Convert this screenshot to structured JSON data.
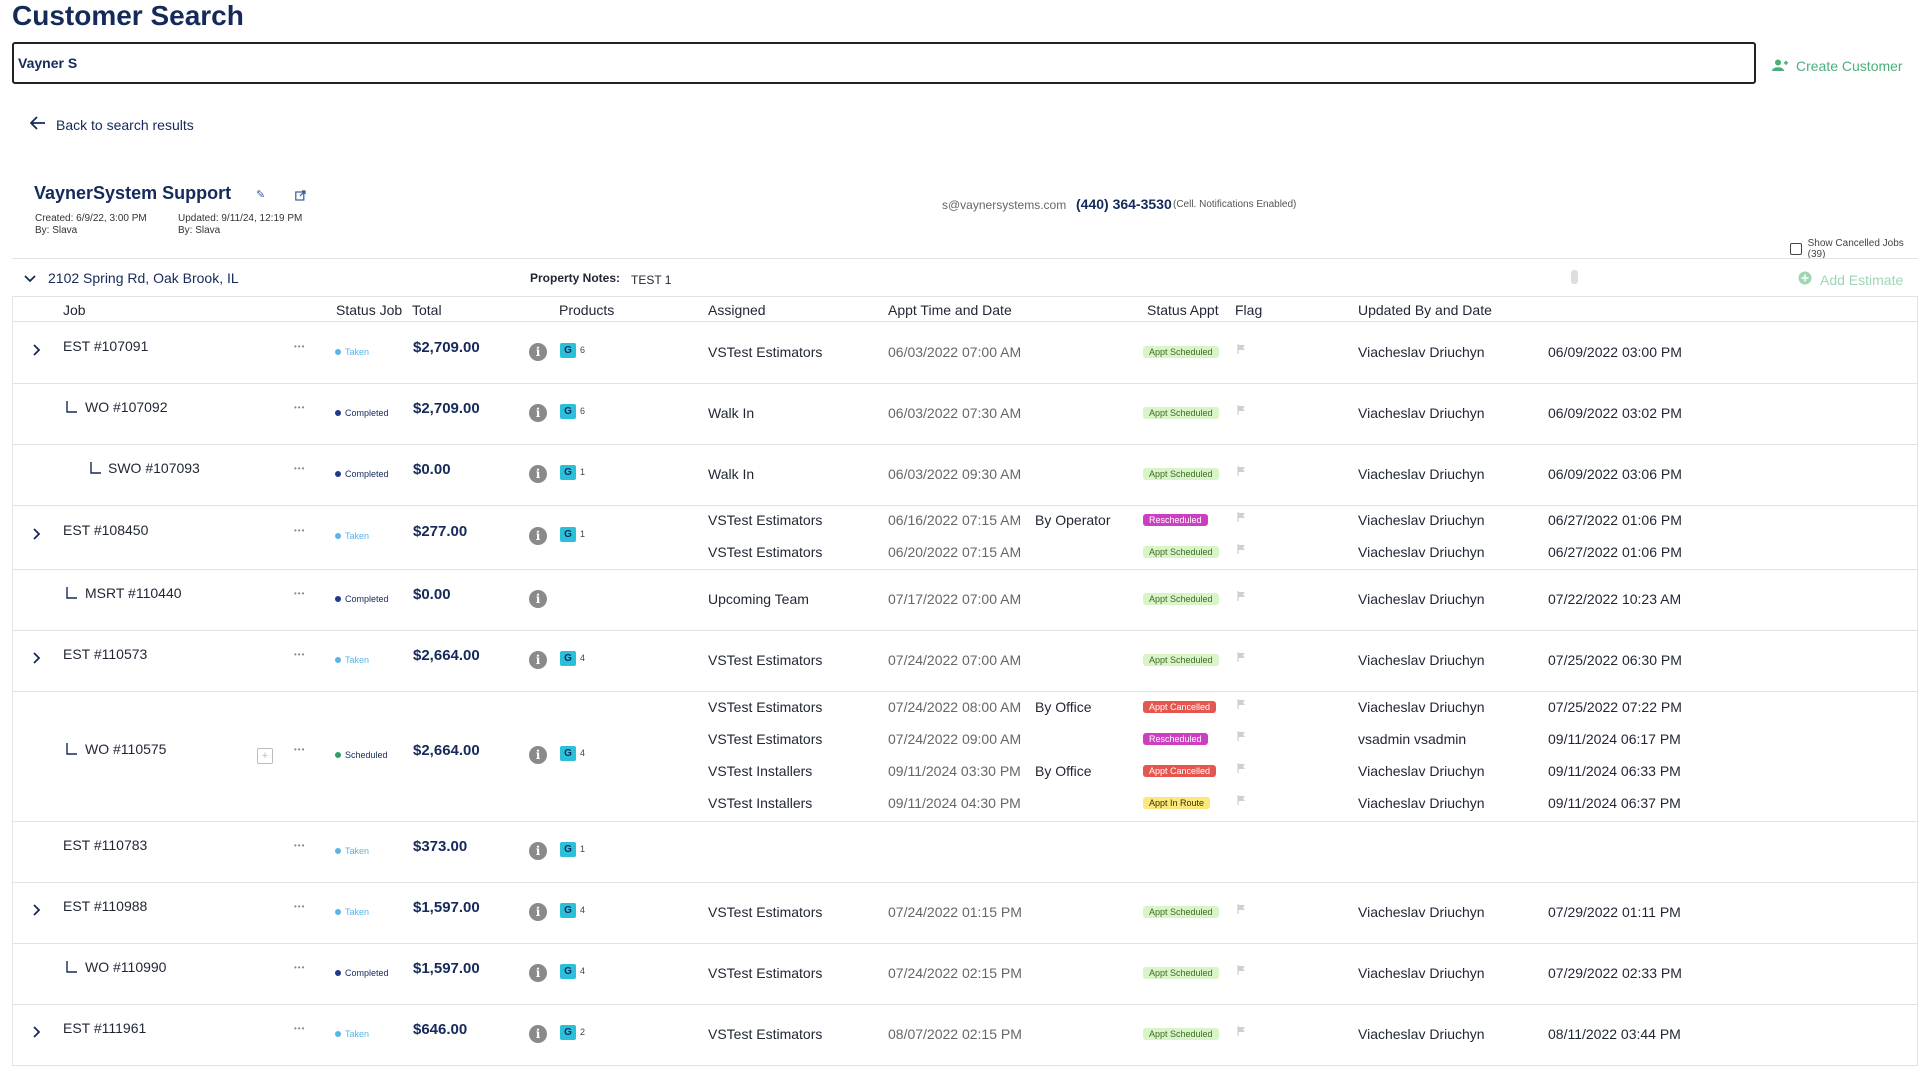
{
  "page": {
    "title": "Customer Search"
  },
  "search": {
    "value": "Vayner S"
  },
  "actions": {
    "create_customer": "Create Customer",
    "back": "Back to search results",
    "add_estimate": "Add Estimate",
    "show_cancelled": "Show Cancelled Jobs (39)"
  },
  "customer": {
    "name": "VaynerSystem Support",
    "created": "Created: 6/9/22, 3:00 PM",
    "created_by": "By: Slava",
    "updated": "Updated: 9/11/24, 12:19 PM",
    "updated_by": "By: Slava",
    "email": "s@vaynersystems.com",
    "phone": "(440) 364-3530",
    "phone_note": "(Cell. Notifications Enabled)"
  },
  "property": {
    "address": "2102 Spring Rd, Oak Brook, IL",
    "notes_label": "Property Notes:",
    "notes": "TEST 1"
  },
  "columns": {
    "job": "Job",
    "status_job": "Status Job",
    "total": "Total",
    "products": "Products",
    "assigned": "Assigned",
    "appt": "Appt Time and Date",
    "status_appt": "Status Appt",
    "flag": "Flag",
    "updated": "Updated By and Date"
  },
  "colors": {
    "navy": "#152a5a",
    "taken": "#5ab4e6",
    "completed": "#1f3a8a",
    "scheduled": "#2e9e6b",
    "badge_g": "#2bc0d9",
    "create": "#4caf7a"
  },
  "rows": [
    {
      "job": "EST #107091",
      "indent": 0,
      "expand": true,
      "status": "Taken",
      "total": "$2,709.00",
      "g": "6",
      "appts": [
        {
          "assigned": "VSTest Estimators",
          "time": "06/03/2022 07:00 AM",
          "by": "",
          "status": "Appt Scheduled",
          "user": "Viacheslav Driuchyn",
          "date": "06/09/2022 03:00 PM"
        }
      ]
    },
    {
      "job": "WO #107092",
      "indent": 1,
      "status": "Completed",
      "total": "$2,709.00",
      "g": "6",
      "appts": [
        {
          "assigned": "Walk In",
          "time": "06/03/2022 07:30 AM",
          "by": "",
          "status": "Appt Scheduled",
          "user": "Viacheslav Driuchyn",
          "date": "06/09/2022 03:02 PM"
        }
      ]
    },
    {
      "job": "SWO #107093",
      "indent": 2,
      "status": "Completed",
      "total": "$0.00",
      "g": "1",
      "appts": [
        {
          "assigned": "Walk In",
          "time": "06/03/2022 09:30 AM",
          "by": "",
          "status": "Appt Scheduled",
          "user": "Viacheslav Driuchyn",
          "date": "06/09/2022 03:06 PM"
        }
      ]
    },
    {
      "job": "EST #108450",
      "indent": 0,
      "expand": true,
      "status": "Taken",
      "total": "$277.00",
      "g": "1",
      "appts": [
        {
          "assigned": "VSTest Estimators",
          "time": "06/16/2022 07:15 AM",
          "by": "By Operator",
          "status": "Rescheduled",
          "user": "Viacheslav Driuchyn",
          "date": "06/27/2022 01:06 PM"
        },
        {
          "assigned": "VSTest Estimators",
          "time": "06/20/2022 07:15 AM",
          "by": "",
          "status": "Appt Scheduled",
          "user": "Viacheslav Driuchyn",
          "date": "06/27/2022 01:06 PM"
        }
      ]
    },
    {
      "job": "MSRT #110440",
      "indent": 1,
      "status": "Completed",
      "total": "$0.00",
      "g": "",
      "appts": [
        {
          "assigned": "Upcoming Team",
          "time": "07/17/2022 07:00 AM",
          "by": "",
          "status": "Appt Scheduled",
          "user": "Viacheslav Driuchyn",
          "date": "07/22/2022 10:23 AM"
        }
      ]
    },
    {
      "job": "EST #110573",
      "indent": 0,
      "expand": true,
      "status": "Taken",
      "total": "$2,664.00",
      "g": "4",
      "appts": [
        {
          "assigned": "VSTest Estimators",
          "time": "07/24/2022 07:00 AM",
          "by": "",
          "status": "Appt Scheduled",
          "user": "Viacheslav Driuchyn",
          "date": "07/25/2022 06:30 PM"
        }
      ]
    },
    {
      "job": "WO #110575",
      "indent": 1,
      "cal": true,
      "status": "Scheduled",
      "total": "$2,664.00",
      "g": "4",
      "appts": [
        {
          "assigned": "VSTest Estimators",
          "time": "07/24/2022 08:00 AM",
          "by": "By Office",
          "status": "Appt Cancelled",
          "user": "Viacheslav Driuchyn",
          "date": "07/25/2022 07:22 PM"
        },
        {
          "assigned": "VSTest Estimators",
          "time": "07/24/2022 09:00 AM",
          "by": "",
          "status": "Rescheduled",
          "user": "vsadmin vsadmin",
          "date": "09/11/2024 06:17 PM"
        },
        {
          "assigned": "VSTest Installers",
          "time": "09/11/2024 03:30 PM",
          "by": "By Office",
          "status": "Appt Cancelled",
          "user": "Viacheslav Driuchyn",
          "date": "09/11/2024 06:33 PM"
        },
        {
          "assigned": "VSTest Installers",
          "time": "09/11/2024 04:30 PM",
          "by": "",
          "status": "Appt In Route",
          "user": "Viacheslav Driuchyn",
          "date": "09/11/2024 06:37 PM"
        }
      ]
    },
    {
      "job": "EST #110783",
      "indent": 0,
      "status": "Taken",
      "total": "$373.00",
      "g": "1",
      "appts": []
    },
    {
      "job": "EST #110988",
      "indent": 0,
      "expand": true,
      "status": "Taken",
      "total": "$1,597.00",
      "g": "4",
      "appts": [
        {
          "assigned": "VSTest Estimators",
          "time": "07/24/2022 01:15 PM",
          "by": "",
          "status": "Appt Scheduled",
          "user": "Viacheslav Driuchyn",
          "date": "07/29/2022 01:11 PM"
        }
      ]
    },
    {
      "job": "WO #110990",
      "indent": 1,
      "status": "Completed",
      "total": "$1,597.00",
      "g": "4",
      "appts": [
        {
          "assigned": "VSTest Estimators",
          "time": "07/24/2022 02:15 PM",
          "by": "",
          "status": "Appt Scheduled",
          "user": "Viacheslav Driuchyn",
          "date": "07/29/2022 02:33 PM"
        }
      ]
    },
    {
      "job": "EST #111961",
      "indent": 0,
      "expand": true,
      "status": "Taken",
      "total": "$646.00",
      "g": "2",
      "appts": [
        {
          "assigned": "VSTest Estimators",
          "time": "08/07/2022 02:15 PM",
          "by": "",
          "status": "Appt Scheduled",
          "user": "Viacheslav Driuchyn",
          "date": "08/11/2022 03:44 PM"
        }
      ]
    }
  ]
}
